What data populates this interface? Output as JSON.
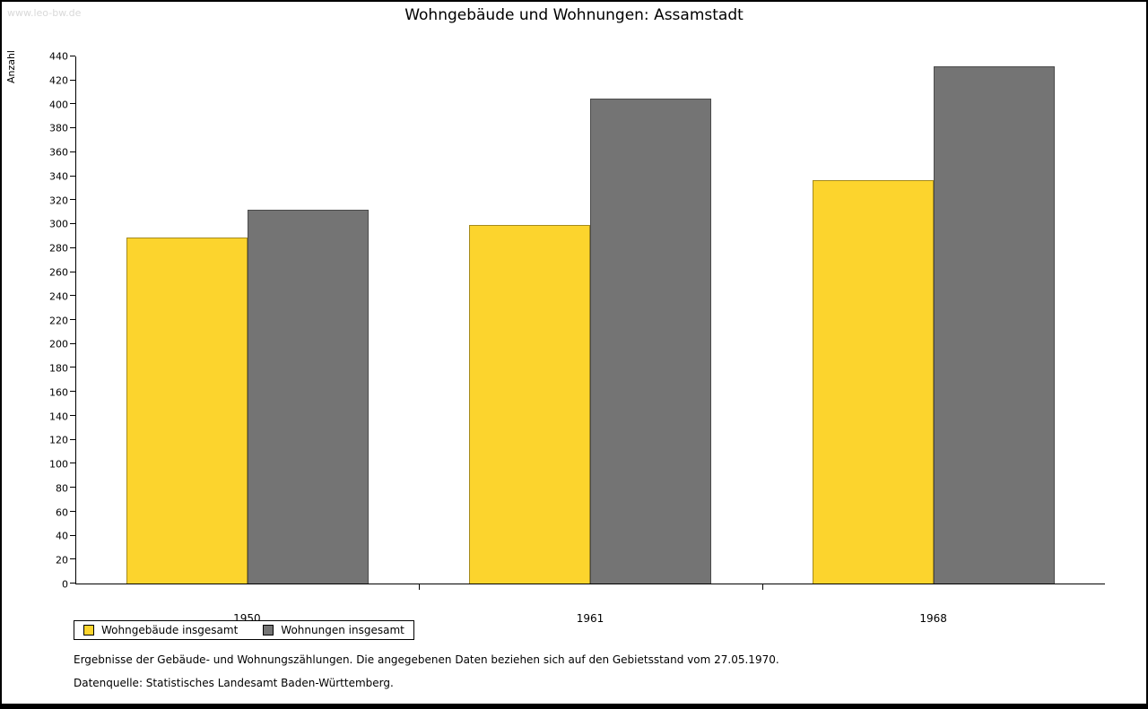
{
  "page": {
    "watermark": "www.leo-bw.de",
    "title": "Wohngebäude und Wohnungen: Assamstadt"
  },
  "chart_data": {
    "type": "bar",
    "title": "Wohngebäude und Wohnungen: Assamstadt",
    "xlabel": "",
    "ylabel": "Anzahl",
    "categories": [
      "1950",
      "1961",
      "1968"
    ],
    "series": [
      {
        "name": "Wohngebäude insgesamt",
        "color": "#FCD42D",
        "values": [
          289,
          299,
          337
        ]
      },
      {
        "name": "Wohnungen insgesamt",
        "color": "#747474",
        "values": [
          312,
          405,
          432
        ]
      }
    ],
    "ylim": [
      0,
      440
    ],
    "ytick_step": 20,
    "grid": false,
    "legend_position": "bottom-left"
  },
  "footnotes": {
    "line1": "Ergebnisse der Gebäude- und Wohnungszählungen. Die angegebenen Daten beziehen sich auf den Gebietsstand vom 27.05.1970.",
    "line2": "Datenquelle: Statistisches Landesamt Baden-Württemberg."
  }
}
